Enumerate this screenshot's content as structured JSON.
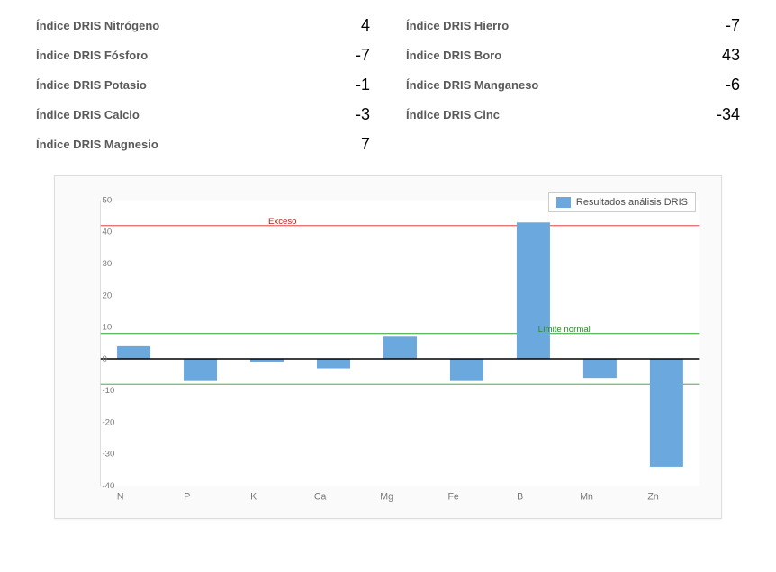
{
  "indices": {
    "left": [
      {
        "label": "Índice DRIS Nitrógeno",
        "value": 4
      },
      {
        "label": "Índice DRIS Fósforo",
        "value": -7
      },
      {
        "label": "Índice DRIS Potasio",
        "value": -1
      },
      {
        "label": "Índice DRIS Calcio",
        "value": -3
      },
      {
        "label": "Índice DRIS Magnesio",
        "value": 7
      }
    ],
    "right": [
      {
        "label": "Índice DRIS Hierro",
        "value": -7
      },
      {
        "label": "Índice DRIS Boro",
        "value": 43
      },
      {
        "label": "Índice DRIS Manganeso",
        "value": -6
      },
      {
        "label": "Índice DRIS Cinc",
        "value": -34
      }
    ]
  },
  "chart": {
    "type": "bar",
    "legend_label": "Resultados análisis DRIS",
    "categories": [
      "N",
      "P",
      "K",
      "Ca",
      "Mg",
      "Fe",
      "B",
      "Mn",
      "Zn"
    ],
    "values": [
      4,
      -7,
      -1,
      -3,
      7,
      -7,
      43,
      -6,
      -34
    ],
    "bar_color": "#6ba8de",
    "background_color": "#fafafa",
    "axis_color": "#000000",
    "tick_label_color": "#7a7a7a",
    "tick_fontsize": 10,
    "ylim": [
      -40,
      50
    ],
    "ytick_step": 10,
    "bar_width_ratio": 0.5,
    "lines": [
      {
        "y": 42,
        "color": "#d62728",
        "label": "Exceso",
        "label_color": "#b02020"
      },
      {
        "y": 8,
        "color": "#2ca02c",
        "label": "Límite normal",
        "label_color": "#2c8a2c"
      },
      {
        "y": -8,
        "color": "#2ca02c",
        "label": "",
        "label_color": "#2c8a2c"
      }
    ],
    "line_label_fontsize": 10,
    "zero_line_width": 1.5
  }
}
